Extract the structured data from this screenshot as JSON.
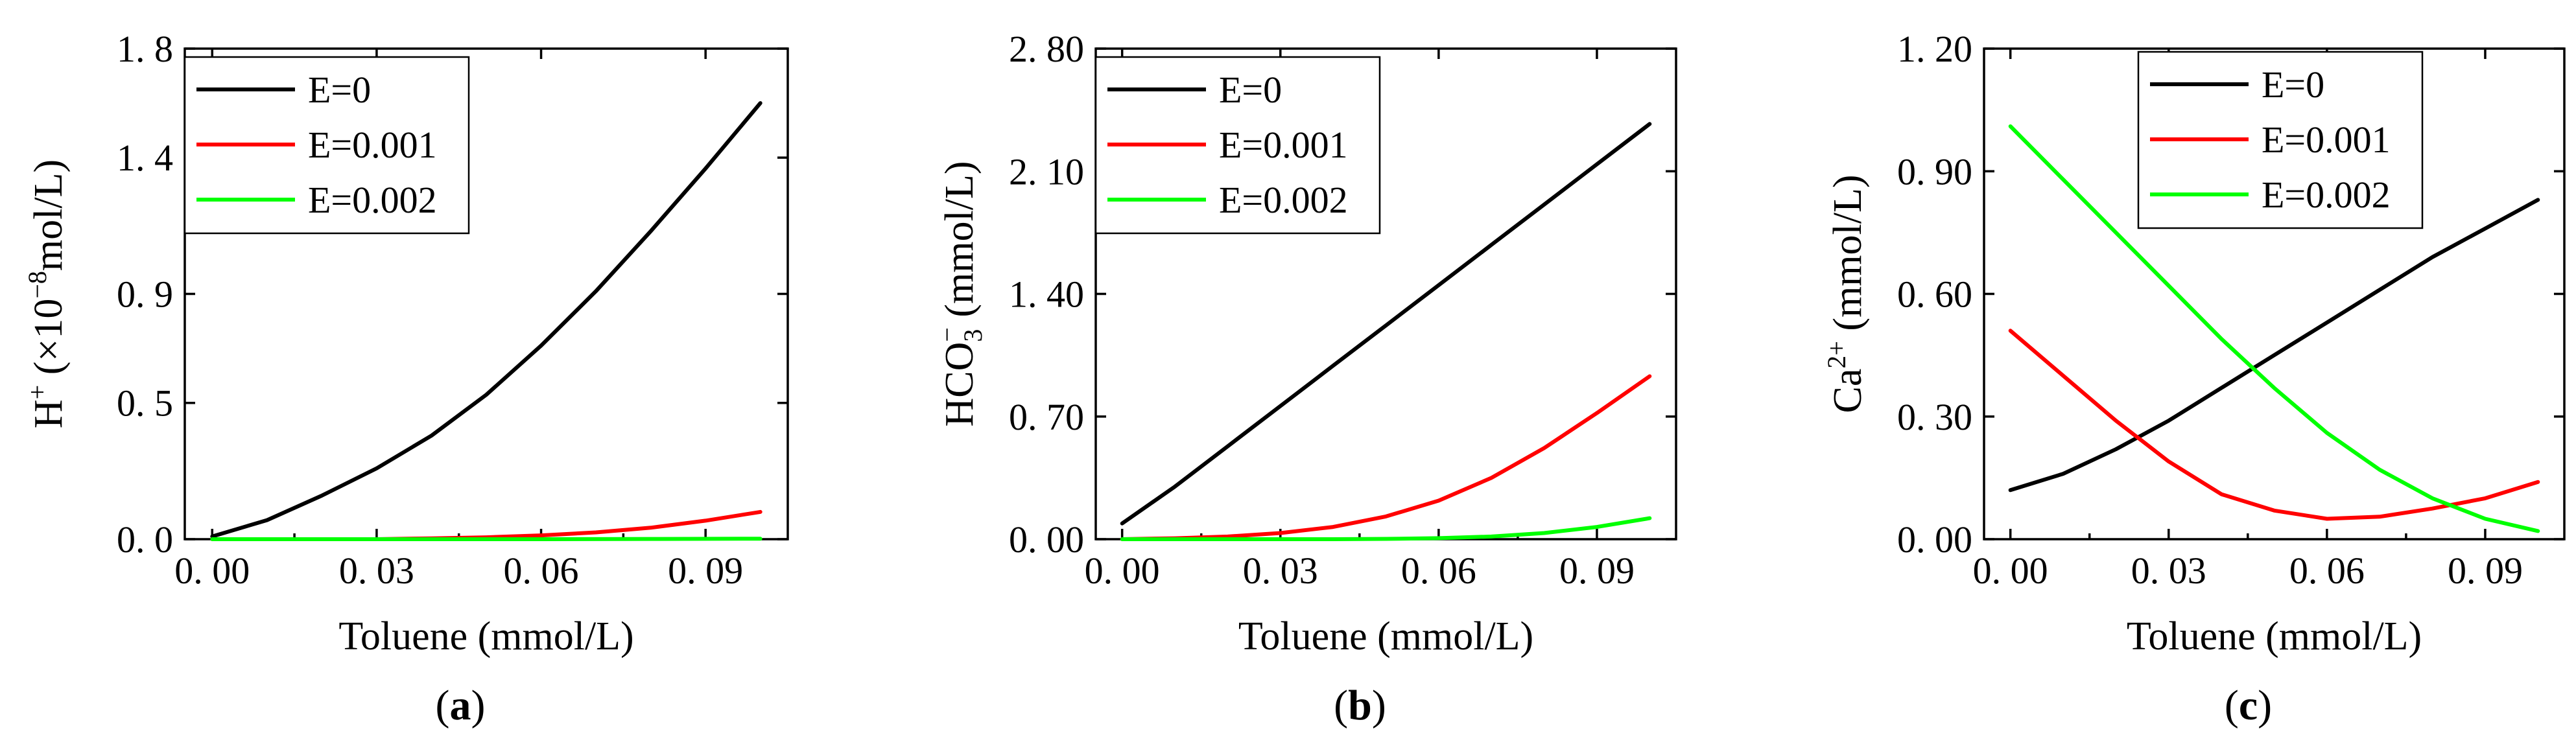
{
  "chart_data": [
    {
      "type": "line",
      "panel_label": "(a)",
      "panel_letter": "a",
      "xlabel": "Toluene (mmol/L)",
      "ylabel": "H⁺ (×10⁻⁸mol/L)",
      "ylabel_parts": {
        "base": "H",
        "sup": "+",
        "rest1": " (×10",
        "exp": "−8",
        "rest2": "mol/L)"
      },
      "xlim": [
        -0.005,
        0.105
      ],
      "ylim": [
        0,
        1.8
      ],
      "x_ticks": [
        0.0,
        0.03,
        0.06,
        0.09
      ],
      "x_tick_labels": [
        "0. 00",
        "0. 03",
        "0. 06",
        "0. 09"
      ],
      "y_ticks": [
        0.0,
        0.5,
        0.9,
        1.4,
        1.8
      ],
      "y_tick_labels": [
        "0. 0",
        "0. 5",
        "0. 9",
        "1. 4",
        "1. 8"
      ],
      "legend_position": "top-left",
      "series": [
        {
          "name": "E=0",
          "color": "#000000",
          "x": [
            0,
            0.01,
            0.02,
            0.03,
            0.04,
            0.05,
            0.06,
            0.07,
            0.08,
            0.09,
            0.1
          ],
          "values": [
            0.01,
            0.07,
            0.16,
            0.26,
            0.38,
            0.53,
            0.71,
            0.91,
            1.13,
            1.36,
            1.6
          ]
        },
        {
          "name": "E=0.001",
          "color": "#ff0000",
          "x": [
            0,
            0.01,
            0.02,
            0.03,
            0.04,
            0.05,
            0.06,
            0.07,
            0.08,
            0.09,
            0.1
          ],
          "values": [
            0.0,
            0.0,
            0.0,
            0.0,
            0.003,
            0.007,
            0.014,
            0.025,
            0.042,
            0.068,
            0.1
          ]
        },
        {
          "name": "E=0.002",
          "color": "#00ff00",
          "x": [
            0,
            0.02,
            0.04,
            0.06,
            0.08,
            0.1
          ],
          "values": [
            0.0,
            0.0,
            0.0,
            0.0,
            0.001,
            0.002
          ]
        }
      ]
    },
    {
      "type": "line",
      "panel_label": "(b)",
      "panel_letter": "b",
      "xlabel": "Toluene (mmol/L)",
      "ylabel": "HCO₃⁻ (mmol/L)",
      "ylabel_parts": {
        "base": "HCO",
        "sub": "3",
        "sup": "−",
        "rest": " (mmol/L)"
      },
      "xlim": [
        -0.005,
        0.105
      ],
      "ylim": [
        0,
        2.8
      ],
      "x_ticks": [
        0.0,
        0.03,
        0.06,
        0.09
      ],
      "x_tick_labels": [
        "0. 00",
        "0. 03",
        "0. 06",
        "0. 09"
      ],
      "y_ticks": [
        0.0,
        0.7,
        1.4,
        2.1,
        2.8
      ],
      "y_tick_labels": [
        "0. 00",
        "0. 70",
        "1. 40",
        "2. 10",
        "2. 80"
      ],
      "legend_position": "top-left",
      "series": [
        {
          "name": "E=0",
          "color": "#000000",
          "x": [
            0,
            0.01,
            0.02,
            0.03,
            0.04,
            0.05,
            0.06,
            0.07,
            0.08,
            0.09,
            0.1
          ],
          "values": [
            0.09,
            0.3,
            0.53,
            0.76,
            0.99,
            1.22,
            1.45,
            1.68,
            1.91,
            2.14,
            2.37
          ]
        },
        {
          "name": "E=0.001",
          "color": "#ff0000",
          "x": [
            0,
            0.01,
            0.02,
            0.03,
            0.04,
            0.05,
            0.06,
            0.07,
            0.08,
            0.09,
            0.1
          ],
          "values": [
            0.0,
            0.005,
            0.015,
            0.035,
            0.07,
            0.13,
            0.22,
            0.35,
            0.52,
            0.72,
            0.93
          ]
        },
        {
          "name": "E=0.002",
          "color": "#00ff00",
          "x": [
            0,
            0.01,
            0.02,
            0.03,
            0.04,
            0.05,
            0.06,
            0.07,
            0.08,
            0.09,
            0.1
          ],
          "values": [
            0.0,
            0.0,
            0.0,
            0.0,
            0.0,
            0.002,
            0.006,
            0.015,
            0.035,
            0.07,
            0.12
          ]
        }
      ]
    },
    {
      "type": "line",
      "panel_label": "(c)",
      "panel_letter": "c",
      "xlabel": "Toluene (mmol/L)",
      "ylabel": "Ca²⁺ (mmol/L)",
      "ylabel_parts": {
        "base": "Ca",
        "sup": "2+",
        "rest": " (mmol/L)"
      },
      "xlim": [
        -0.005,
        0.105
      ],
      "ylim": [
        0,
        1.2
      ],
      "x_ticks": [
        0.0,
        0.03,
        0.06,
        0.09
      ],
      "x_tick_labels": [
        "0. 00",
        "0. 03",
        "0. 06",
        "0. 09"
      ],
      "y_ticks": [
        0.0,
        0.3,
        0.6,
        0.9,
        1.2
      ],
      "y_tick_labels": [
        "0. 00",
        "0. 30",
        "0. 60",
        "0. 90",
        "1. 20"
      ],
      "legend_position": "top-right",
      "series": [
        {
          "name": "E=0",
          "color": "#000000",
          "x": [
            0,
            0.01,
            0.02,
            0.03,
            0.04,
            0.05,
            0.06,
            0.07,
            0.08,
            0.09,
            0.1
          ],
          "values": [
            0.12,
            0.16,
            0.22,
            0.29,
            0.37,
            0.45,
            0.53,
            0.61,
            0.69,
            0.76,
            0.83
          ]
        },
        {
          "name": "E=0.001",
          "color": "#ff0000",
          "x": [
            0,
            0.01,
            0.02,
            0.03,
            0.04,
            0.05,
            0.06,
            0.07,
            0.08,
            0.09,
            0.1
          ],
          "values": [
            0.51,
            0.4,
            0.29,
            0.19,
            0.11,
            0.07,
            0.05,
            0.055,
            0.075,
            0.1,
            0.14
          ]
        },
        {
          "name": "E=0.002",
          "color": "#00ff00",
          "x": [
            0,
            0.01,
            0.02,
            0.03,
            0.04,
            0.05,
            0.06,
            0.07,
            0.08,
            0.09,
            0.1
          ],
          "values": [
            1.01,
            0.88,
            0.75,
            0.62,
            0.49,
            0.37,
            0.26,
            0.17,
            0.1,
            0.05,
            0.02
          ]
        }
      ]
    }
  ]
}
